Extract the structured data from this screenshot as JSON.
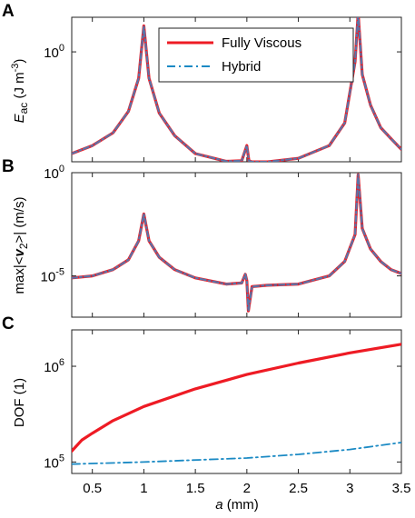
{
  "panels": {
    "A": {
      "letter": "A"
    },
    "B": {
      "letter": "B"
    },
    "C": {
      "letter": "C"
    }
  },
  "colors": {
    "fully_viscous": "#ee1b24",
    "hybrid": "#1b8ac4",
    "hybrid_overlay": "#5a74a8"
  },
  "legend": {
    "fully_viscous": "Fully Viscous",
    "hybrid": "Hybrid"
  },
  "chart_data": [
    {
      "id": "A",
      "type": "line",
      "yscale": "log",
      "ylabel_main": "E",
      "ylabel_sub": "ac",
      "ylabel_unit": " (J m",
      "ylabel_sup": "-3",
      "ylabel_close": ")",
      "xlim": [
        0.3,
        3.5
      ],
      "ylim_log10": [
        -1.08,
        0.34
      ],
      "yticks": [
        {
          "base": "10",
          "exp": "0",
          "value": 1
        }
      ],
      "legend_placement": "top-right",
      "grid": false,
      "series": [
        {
          "name": "Fully Viscous",
          "style": "solid",
          "x": [
            0.3,
            0.5,
            0.7,
            0.85,
            0.95,
            1.0,
            1.05,
            1.15,
            1.3,
            1.5,
            1.8,
            1.95,
            2.0,
            2.02,
            2.05,
            2.2,
            2.5,
            2.8,
            2.95,
            3.05,
            3.08,
            3.12,
            3.2,
            3.3,
            3.4,
            3.5
          ],
          "y": [
            0.1,
            0.12,
            0.16,
            0.26,
            0.55,
            1.8,
            0.55,
            0.25,
            0.15,
            0.1,
            0.084,
            0.085,
            0.12,
            0.085,
            0.083,
            0.083,
            0.09,
            0.12,
            0.2,
            0.8,
            2.4,
            0.6,
            0.3,
            0.18,
            0.14,
            0.11
          ]
        },
        {
          "name": "Hybrid",
          "style": "dashdot",
          "x": [
            0.3,
            0.5,
            0.7,
            0.85,
            0.95,
            1.0,
            1.05,
            1.15,
            1.3,
            1.5,
            1.8,
            1.95,
            2.0,
            2.02,
            2.05,
            2.2,
            2.5,
            2.8,
            2.95,
            3.05,
            3.08,
            3.12,
            3.2,
            3.3,
            3.4,
            3.5
          ],
          "y": [
            0.1,
            0.12,
            0.16,
            0.26,
            0.55,
            1.8,
            0.55,
            0.25,
            0.15,
            0.1,
            0.084,
            0.085,
            0.12,
            0.085,
            0.083,
            0.083,
            0.09,
            0.12,
            0.2,
            0.8,
            2.4,
            0.6,
            0.3,
            0.18,
            0.14,
            0.11
          ]
        }
      ]
    },
    {
      "id": "B",
      "type": "line",
      "yscale": "log",
      "ylabel_pre": "max|<",
      "ylabel_var": "v",
      "ylabel_sub": "2",
      "ylabel_post": ">| (m/s)",
      "xlim": [
        0.3,
        3.5
      ],
      "ylim_log10": [
        -7.0,
        0.0
      ],
      "yticks": [
        {
          "base": "10",
          "exp": "0",
          "value": 1
        },
        {
          "base": "10",
          "exp": "-5",
          "value": 1e-05
        }
      ],
      "grid": false,
      "series": [
        {
          "name": "Fully Viscous",
          "style": "solid",
          "x": [
            0.3,
            0.5,
            0.7,
            0.85,
            0.95,
            1.0,
            1.05,
            1.15,
            1.3,
            1.5,
            1.8,
            1.95,
            1.985,
            2.0,
            2.015,
            2.05,
            2.2,
            2.5,
            2.8,
            2.95,
            3.05,
            3.08,
            3.12,
            3.2,
            3.3,
            3.4,
            3.5
          ],
          "y": [
            8e-06,
            1e-05,
            2e-05,
            6e-05,
            0.0005,
            0.01,
            0.0005,
            8e-05,
            2e-05,
            8e-06,
            4e-06,
            4.5e-06,
            1.2e-05,
            6e-06,
            2e-07,
            3e-06,
            3.5e-06,
            4e-06,
            1e-05,
            5e-05,
            0.001,
            0.8,
            0.002,
            0.0002,
            5e-05,
            2e-05,
            1.3e-05
          ]
        },
        {
          "name": "Hybrid",
          "style": "dashdot",
          "x": [
            0.3,
            0.5,
            0.7,
            0.85,
            0.95,
            1.0,
            1.05,
            1.15,
            1.3,
            1.5,
            1.8,
            1.95,
            1.985,
            2.0,
            2.015,
            2.05,
            2.2,
            2.5,
            2.8,
            2.95,
            3.05,
            3.08,
            3.12,
            3.2,
            3.3,
            3.4,
            3.5
          ],
          "y": [
            8e-06,
            1e-05,
            2e-05,
            6e-05,
            0.0005,
            0.01,
            0.0005,
            8e-05,
            2e-05,
            8e-06,
            4e-06,
            4.5e-06,
            1.2e-05,
            6e-06,
            2e-07,
            3e-06,
            3.5e-06,
            4e-06,
            1e-05,
            5e-05,
            0.001,
            0.8,
            0.002,
            0.0002,
            5e-05,
            2e-05,
            1.3e-05
          ]
        }
      ]
    },
    {
      "id": "C",
      "type": "line",
      "yscale": "log",
      "ylabel": "DOF (1)",
      "xlabel_var": "a",
      "xlabel_unit": " (mm)",
      "xlim": [
        0.3,
        3.5
      ],
      "ylim_log10": [
        4.88,
        6.38
      ],
      "xticks": [
        "0.5",
        "1",
        "1.5",
        "2",
        "2.5",
        "3",
        "3.5"
      ],
      "xtick_values": [
        0.5,
        1,
        1.5,
        2,
        2.5,
        3,
        3.5
      ],
      "yticks": [
        {
          "base": "10",
          "exp": "5",
          "value": 100000
        },
        {
          "base": "10",
          "exp": "6",
          "value": 1000000
        }
      ],
      "grid": false,
      "series": [
        {
          "name": "Fully Viscous",
          "style": "solid",
          "x": [
            0.3,
            0.4,
            0.5,
            0.7,
            1.0,
            1.5,
            2.0,
            2.5,
            3.0,
            3.5
          ],
          "y": [
            130000,
            170000,
            200000,
            270000,
            380000,
            580000,
            820000,
            1080000,
            1380000,
            1700000
          ]
        },
        {
          "name": "Hybrid",
          "style": "dashdot",
          "x": [
            0.3,
            1.0,
            2.0,
            2.5,
            3.0,
            3.5
          ],
          "y": [
            95000,
            100000,
            110000,
            120000,
            135000,
            160000
          ]
        }
      ]
    }
  ]
}
